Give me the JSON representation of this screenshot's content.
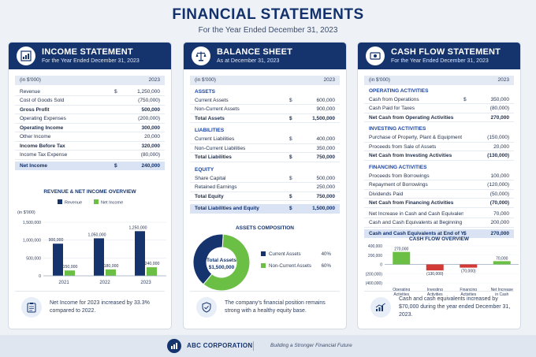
{
  "header": {
    "title": "FINANCIAL STATEMENTS",
    "subtitle": "For the Year Ended December 31, 2023"
  },
  "income": {
    "title": "INCOME STATEMENT",
    "subtitle": "For the Year Ended December 31, 2023",
    "icon": "bar-chart-icon",
    "unit": "(in $'000)",
    "year": "2023",
    "rows": [
      {
        "label": "Revenue",
        "cur": "$",
        "value": "1,250,000",
        "bold": false
      },
      {
        "label": "Cost of Goods Sold",
        "cur": "",
        "value": "(750,000)",
        "bold": false
      },
      {
        "label": "Gross Profit",
        "cur": "",
        "value": "500,000",
        "bold": true
      },
      {
        "label": "Operating Expenses",
        "cur": "",
        "value": "(200,000)",
        "bold": false
      },
      {
        "label": "Operating Income",
        "cur": "",
        "value": "300,000",
        "bold": true
      },
      {
        "label": "Other Income",
        "cur": "",
        "value": "20,000",
        "bold": false
      },
      {
        "label": "Income Before Tax",
        "cur": "",
        "value": "320,000",
        "bold": true
      },
      {
        "label": "Income Tax Expense",
        "cur": "",
        "value": "(80,000)",
        "bold": false
      }
    ],
    "total": {
      "label": "Net Income",
      "cur": "$",
      "value": "240,000"
    },
    "note": "Net Income for 2023 increased by 33.3% compared to 2022.",
    "note_icon": "clipboard-icon"
  },
  "balance": {
    "title": "BALANCE SHEET",
    "subtitle": "As at December 31, 2023",
    "icon": "scale-icon",
    "unit": "(in $'000)",
    "year": "2023",
    "sections": [
      {
        "name": "ASSETS",
        "rows": [
          {
            "label": "Current Assets",
            "cur": "$",
            "value": "600,000"
          },
          {
            "label": "Non-Current Assets",
            "cur": "",
            "value": "900,000"
          }
        ],
        "total": {
          "label": "Total Assets",
          "cur": "$",
          "value": "1,500,000"
        }
      },
      {
        "name": "LIABILITIES",
        "rows": [
          {
            "label": "Current Liabilities",
            "cur": "$",
            "value": "400,000"
          },
          {
            "label": "Non-Current Liabilities",
            "cur": "",
            "value": "350,000"
          }
        ],
        "total": {
          "label": "Total Liabilities",
          "cur": "$",
          "value": "750,000"
        }
      },
      {
        "name": "EQUITY",
        "rows": [
          {
            "label": "Share Capital",
            "cur": "$",
            "value": "500,000"
          },
          {
            "label": "Retained Earnings",
            "cur": "",
            "value": "250,000"
          }
        ],
        "total": {
          "label": "Total Equity",
          "cur": "$",
          "value": "750,000"
        }
      }
    ],
    "grand_total": {
      "label": "Total Liabilities and Equity",
      "cur": "$",
      "value": "1,500,000"
    },
    "note": "The company's financial position remains strong with a healthy equity base.",
    "note_icon": "shield-check-icon"
  },
  "cashflow": {
    "title": "CASH FLOW STATEMENT",
    "subtitle": "For the Year Ended December 31, 2023",
    "icon": "cash-icon",
    "unit": "(in $'000)",
    "year": "2023",
    "sections": [
      {
        "name": "OPERATING ACTIVITIES",
        "rows": [
          {
            "label": "Cash from Operations",
            "cur": "$",
            "value": "350,000",
            "bold": false
          },
          {
            "label": "Cash Paid for Taxes",
            "cur": "",
            "value": "(80,000)",
            "bold": false
          },
          {
            "label": "Net Cash from Operating Activities",
            "cur": "",
            "value": "270,000",
            "bold": true
          }
        ]
      },
      {
        "name": "INVESTING ACTIVITIES",
        "rows": [
          {
            "label": "Purchase of Property, Plant & Equipment",
            "cur": "",
            "value": "(150,000)",
            "bold": false
          },
          {
            "label": "Proceeds from Sale of Assets",
            "cur": "",
            "value": "20,000",
            "bold": false
          },
          {
            "label": "Net Cash from Investing Activities",
            "cur": "",
            "value": "(130,000)",
            "bold": true
          }
        ]
      },
      {
        "name": "FINANCING ACTIVITIES",
        "rows": [
          {
            "label": "Proceeds from Borrowings",
            "cur": "",
            "value": "100,000",
            "bold": false
          },
          {
            "label": "Repayment of Borrowings",
            "cur": "",
            "value": "(120,000)",
            "bold": false
          },
          {
            "label": "Dividends Paid",
            "cur": "",
            "value": "(50,000)",
            "bold": false
          },
          {
            "label": "Net Cash from Financing Activities",
            "cur": "",
            "value": "(70,000)",
            "bold": true
          }
        ]
      }
    ],
    "tail_rows": [
      {
        "label": "Net Increase in Cash and Cash Equivalents",
        "cur": "",
        "value": "70,000"
      },
      {
        "label": "Cash and Cash Equivalents at Beginning of Year",
        "cur": "",
        "value": "200,000"
      }
    ],
    "total": {
      "label": "Cash and Cash Equivalents at End of Year",
      "cur": "$",
      "value": "270,000"
    },
    "note": "Cash and cash equivalents increased by $70,000 during the year ended December 31, 2023.",
    "note_icon": "trend-up-icon"
  },
  "chart_data": [
    {
      "type": "bar",
      "title": "REVENUE & NET INCOME OVERVIEW",
      "ylabel": "(in $'000)",
      "categories": [
        "2021",
        "2022",
        "2023"
      ],
      "series": [
        {
          "name": "Revenue",
          "values": [
            900000,
            1050000,
            1250000
          ],
          "labels": [
            "900,000",
            "1,050,000",
            "1,250,000"
          ],
          "color": "#15346e"
        },
        {
          "name": "Net Income",
          "values": [
            150000,
            180000,
            240000
          ],
          "labels": [
            "150,000",
            "180,000",
            "240,000"
          ],
          "color": "#6cbf45"
        }
      ],
      "ylim": [
        0,
        1500000
      ],
      "yticks": [
        0,
        500000,
        1000000,
        1500000
      ],
      "ytick_labels": [
        "0",
        "500,000",
        "1,000,000",
        "1,500,000"
      ],
      "legend": "top"
    },
    {
      "type": "pie",
      "title": "ASSETS COMPOSITION",
      "center_label": "Total Assets",
      "center_value": "$1,500,000",
      "slices": [
        {
          "name": "Current Assets",
          "value": 40,
          "label": "40%",
          "color": "#15346e"
        },
        {
          "name": "Non-Current Assets",
          "value": 60,
          "label": "60%",
          "color": "#6cbf45"
        }
      ],
      "legend": "right"
    },
    {
      "type": "bar",
      "title": "CASH FLOW OVERVIEW",
      "categories": [
        "Operating Activities",
        "Investing Activities",
        "Financing Activities",
        "Net Increase in Cash"
      ],
      "values": [
        270000,
        -130000,
        -70000,
        70000
      ],
      "labels": [
        "270,000",
        "(130,000)",
        "(70,000)",
        "70,000"
      ],
      "colors": [
        "#6cbf45",
        "#d43a35",
        "#d43a35",
        "#6cbf45"
      ],
      "ylim": [
        -400000,
        400000
      ],
      "yticks": [
        400000,
        200000,
        0,
        -200000,
        -400000
      ],
      "ytick_labels": [
        "400,000",
        "200,000",
        "0",
        "(200,000)",
        "(400,000)"
      ]
    }
  ],
  "footer": {
    "company": "ABC CORPORATION",
    "tagline": "Building a Stronger Financial Future",
    "logo_icon": "company-logo-icon"
  }
}
